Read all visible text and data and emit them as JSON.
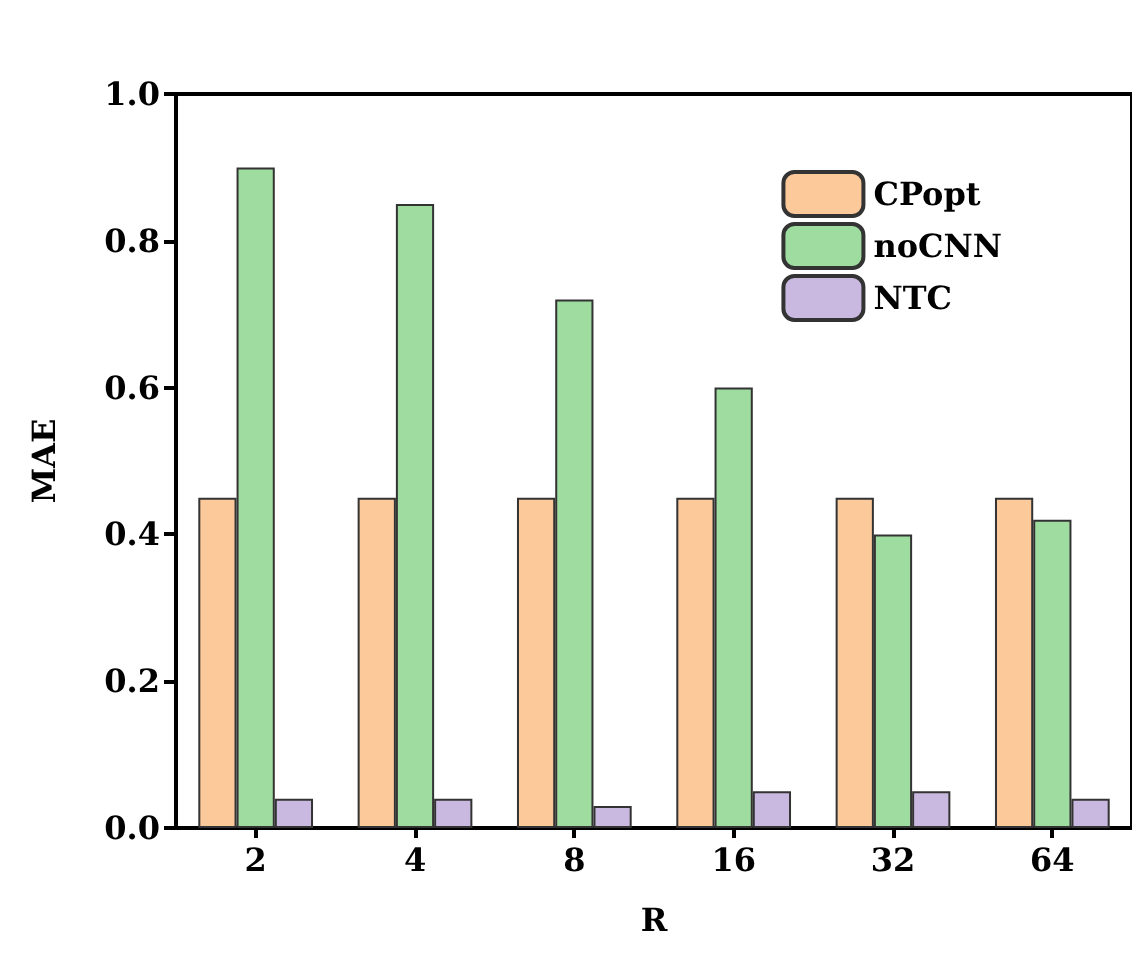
{
  "chart_data": {
    "type": "bar",
    "xlabel": "R",
    "ylabel": "MAE",
    "categories": [
      "2",
      "4",
      "8",
      "16",
      "32",
      "64"
    ],
    "series": [
      {
        "name": "CPopt",
        "color": "#fcc99b",
        "values": [
          0.45,
          0.45,
          0.45,
          0.45,
          0.45,
          0.45
        ]
      },
      {
        "name": "noCNN",
        "color": "#9fdc9f",
        "values": [
          0.9,
          0.85,
          0.72,
          0.6,
          0.4,
          0.42
        ]
      },
      {
        "name": "NTC",
        "color": "#c9b8e0",
        "values": [
          0.04,
          0.04,
          0.03,
          0.05,
          0.05,
          0.04
        ]
      }
    ],
    "ylim": [
      0,
      1
    ],
    "yticks": [
      {
        "value": 0,
        "label": "0.0"
      },
      0.2,
      0.4,
      0.6,
      0.8,
      {
        "value": 1,
        "label": "1.0"
      }
    ],
    "grid": false,
    "legend": "top right"
  }
}
